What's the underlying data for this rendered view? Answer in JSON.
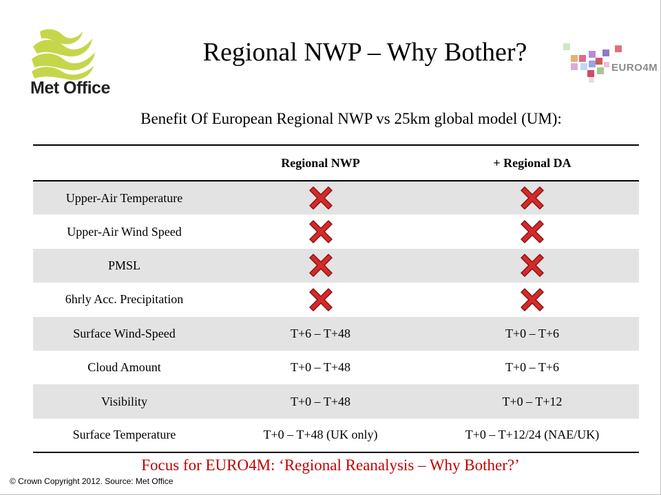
{
  "slide": {
    "title": "Regional NWP – Why Bother?",
    "subtitle": "Benefit Of European Regional NWP vs 25km global model (UM):",
    "focus_note": "Focus for EURO4M: ‘Regional Reanalysis – Why Bother?’",
    "copyright": "© Crown  Copyright 2012.  Source: Met Office"
  },
  "logos": {
    "met_office": {
      "text": "Met Office",
      "color": "#c6d64a"
    },
    "euro4m": {
      "text": "EURO4M"
    }
  },
  "table": {
    "headers": [
      "",
      "Regional NWP",
      "+ Regional DA"
    ],
    "rows": [
      {
        "label": "Upper-Air Temperature",
        "nwp": "",
        "da": "",
        "nwp_icon": "cross-icon",
        "da_icon": "cross-icon"
      },
      {
        "label": "Upper-Air Wind Speed",
        "nwp": "",
        "da": "",
        "nwp_icon": "cross-icon",
        "da_icon": "cross-icon"
      },
      {
        "label": "PMSL",
        "nwp": "",
        "da": "",
        "nwp_icon": "cross-icon",
        "da_icon": "cross-icon"
      },
      {
        "label": "6hrly Acc. Precipitation",
        "nwp": "",
        "da": "",
        "nwp_icon": "cross-icon",
        "da_icon": "cross-icon"
      },
      {
        "label": "Surface Wind-Speed",
        "nwp": "T+6 – T+48",
        "da": "T+0 – T+6"
      },
      {
        "label": "Cloud Amount",
        "nwp": "T+0 – T+48",
        "da": "T+0 – T+6"
      },
      {
        "label": "Visibility",
        "nwp": "T+0 – T+48",
        "da": "T+0 – T+12"
      },
      {
        "label": "Surface Temperature",
        "nwp": "T+0 – T+48 (UK only)",
        "da": "T+0 – T+12/24 (NAE/UK)"
      }
    ]
  },
  "colors": {
    "cross_fill": "#d42a2a",
    "focus_text": "#c00000",
    "row_shade": "#e3e3e3"
  }
}
